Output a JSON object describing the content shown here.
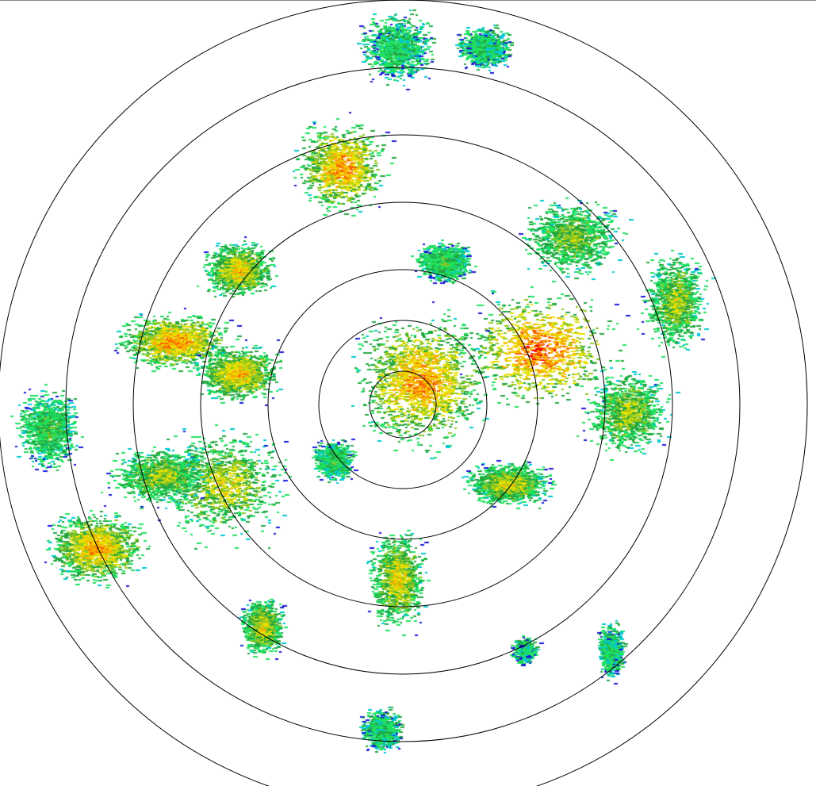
{
  "radar": {
    "product": "reflectivity",
    "range_rings": 7,
    "ring_color": "#000000",
    "background": "#ffffff",
    "palette": [
      "#1818d8",
      "#00c8d0",
      "#20e060",
      "#22a840",
      "#90c820",
      "#e8e000",
      "#f8b000",
      "#f86000",
      "#f00000"
    ]
  }
}
